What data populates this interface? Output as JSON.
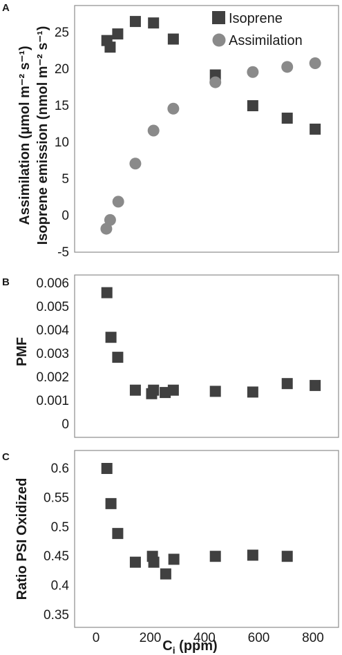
{
  "chart_data": [
    {
      "type": "scatter",
      "panel_label": "A",
      "ylabel_line1": "Assimilation (µmol m⁻² s⁻¹)",
      "ylabel_line2": "Isoprene emission (nmol m⁻² s⁻¹)",
      "xlim": [
        0,
        900
      ],
      "ylim": [
        -5,
        27.5
      ],
      "yticks": [
        -5,
        0,
        5,
        10,
        15,
        20,
        25
      ],
      "legend_position": "top-right",
      "grid": false,
      "series": [
        {
          "name": "Isoprene",
          "marker": "square",
          "color": "#404040",
          "points": [
            [
              40,
              23.9
            ],
            [
              52,
              23.0
            ],
            [
              80,
              24.8
            ],
            [
              145,
              26.5
            ],
            [
              212,
              26.3
            ],
            [
              285,
              24.1
            ],
            [
              440,
              19.2
            ],
            [
              578,
              15.0
            ],
            [
              705,
              13.3
            ],
            [
              808,
              11.8
            ]
          ]
        },
        {
          "name": "Assimilation",
          "marker": "circle",
          "color": "#8a8a8a",
          "points": [
            [
              38,
              -1.8
            ],
            [
              52,
              -0.6
            ],
            [
              82,
              1.9
            ],
            [
              145,
              7.1
            ],
            [
              212,
              11.6
            ],
            [
              285,
              14.6
            ],
            [
              440,
              18.2
            ],
            [
              578,
              19.6
            ],
            [
              705,
              20.3
            ],
            [
              808,
              20.8
            ]
          ]
        }
      ]
    },
    {
      "type": "scatter",
      "panel_label": "B",
      "ylabel": "PMF",
      "xlim": [
        0,
        900
      ],
      "ylim": [
        0,
        0.006
      ],
      "yticks": [
        0,
        0.001,
        0.002,
        0.003,
        0.004,
        0.005,
        0.006
      ],
      "ytick_labels": [
        "0",
        "0.001",
        "0.002",
        "0.003",
        "0.004",
        "0.005",
        "0.006"
      ],
      "grid": false,
      "series": [
        {
          "marker": "square",
          "color": "#404040",
          "points": [
            [
              40,
              0.0056
            ],
            [
              55,
              0.0037
            ],
            [
              80,
              0.00285
            ],
            [
              145,
              0.00145
            ],
            [
              205,
              0.0013
            ],
            [
              212,
              0.00145
            ],
            [
              255,
              0.00135
            ],
            [
              285,
              0.00145
            ],
            [
              440,
              0.0014
            ],
            [
              578,
              0.00137
            ],
            [
              705,
              0.00173
            ],
            [
              808,
              0.00165
            ]
          ]
        }
      ]
    },
    {
      "type": "scatter",
      "panel_label": "C",
      "ylabel": "Ratio PSI Oxidized",
      "xlabel_main": "C",
      "xlabel_sub": "i",
      "xlabel_rest": " (ppm)",
      "xlim": [
        0,
        900
      ],
      "ylim": [
        0.35,
        0.62
      ],
      "yticks": [
        0.35,
        0.4,
        0.45,
        0.5,
        0.55,
        0.6
      ],
      "ytick_labels": [
        "0.35",
        "0.4",
        "0.45",
        "0.5",
        "0.55",
        "0.6"
      ],
      "xticks": [
        0,
        200,
        400,
        600,
        800
      ],
      "xtick_labels": [
        "0",
        "200",
        "400",
        "600",
        "800"
      ],
      "grid": false,
      "series": [
        {
          "marker": "square",
          "color": "#404040",
          "points": [
            [
              40,
              0.6
            ],
            [
              55,
              0.54
            ],
            [
              80,
              0.489
            ],
            [
              145,
              0.44
            ],
            [
              208,
              0.45
            ],
            [
              213,
              0.44
            ],
            [
              257,
              0.42
            ],
            [
              287,
              0.445
            ],
            [
              440,
              0.45
            ],
            [
              578,
              0.452
            ],
            [
              705,
              0.45
            ]
          ]
        }
      ]
    }
  ]
}
